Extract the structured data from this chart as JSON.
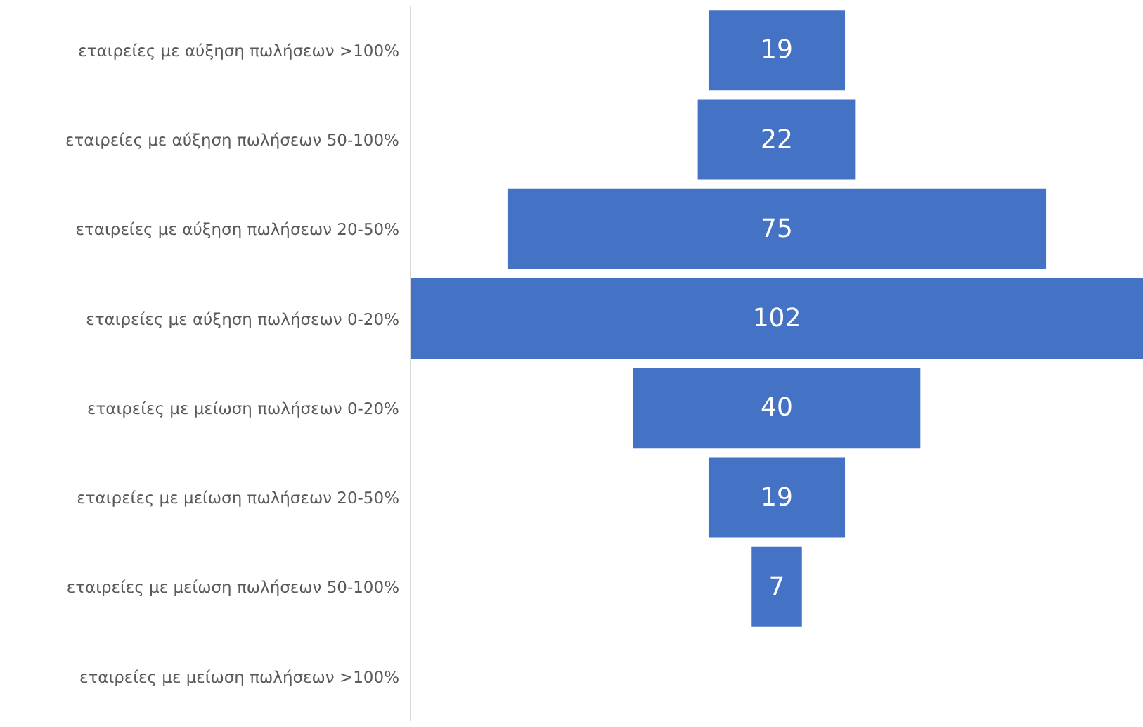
{
  "chart_data": {
    "type": "other",
    "categories": [
      "εταιρείες με αύξηση πωλήσεων >100%",
      "εταιρείες με αύξηση πωλήσεων 50-100%",
      "εταιρείες με αύξηση πωλήσεων 20-50%",
      "εταιρείες με αύξηση πωλήσεων 0-20%",
      "εταιρείες με μείωση πωλήσεων 0-20%",
      "εταιρείες με μείωση πωλήσεων 20-50%",
      "εταιρείες με μείωση πωλήσεων 50-100%",
      "εταιρείες με μείωση πωλήσεων >100%"
    ],
    "values": [
      19,
      22,
      75,
      102,
      40,
      19,
      7,
      null
    ],
    "color": "#4472c4",
    "data_labels": true
  }
}
